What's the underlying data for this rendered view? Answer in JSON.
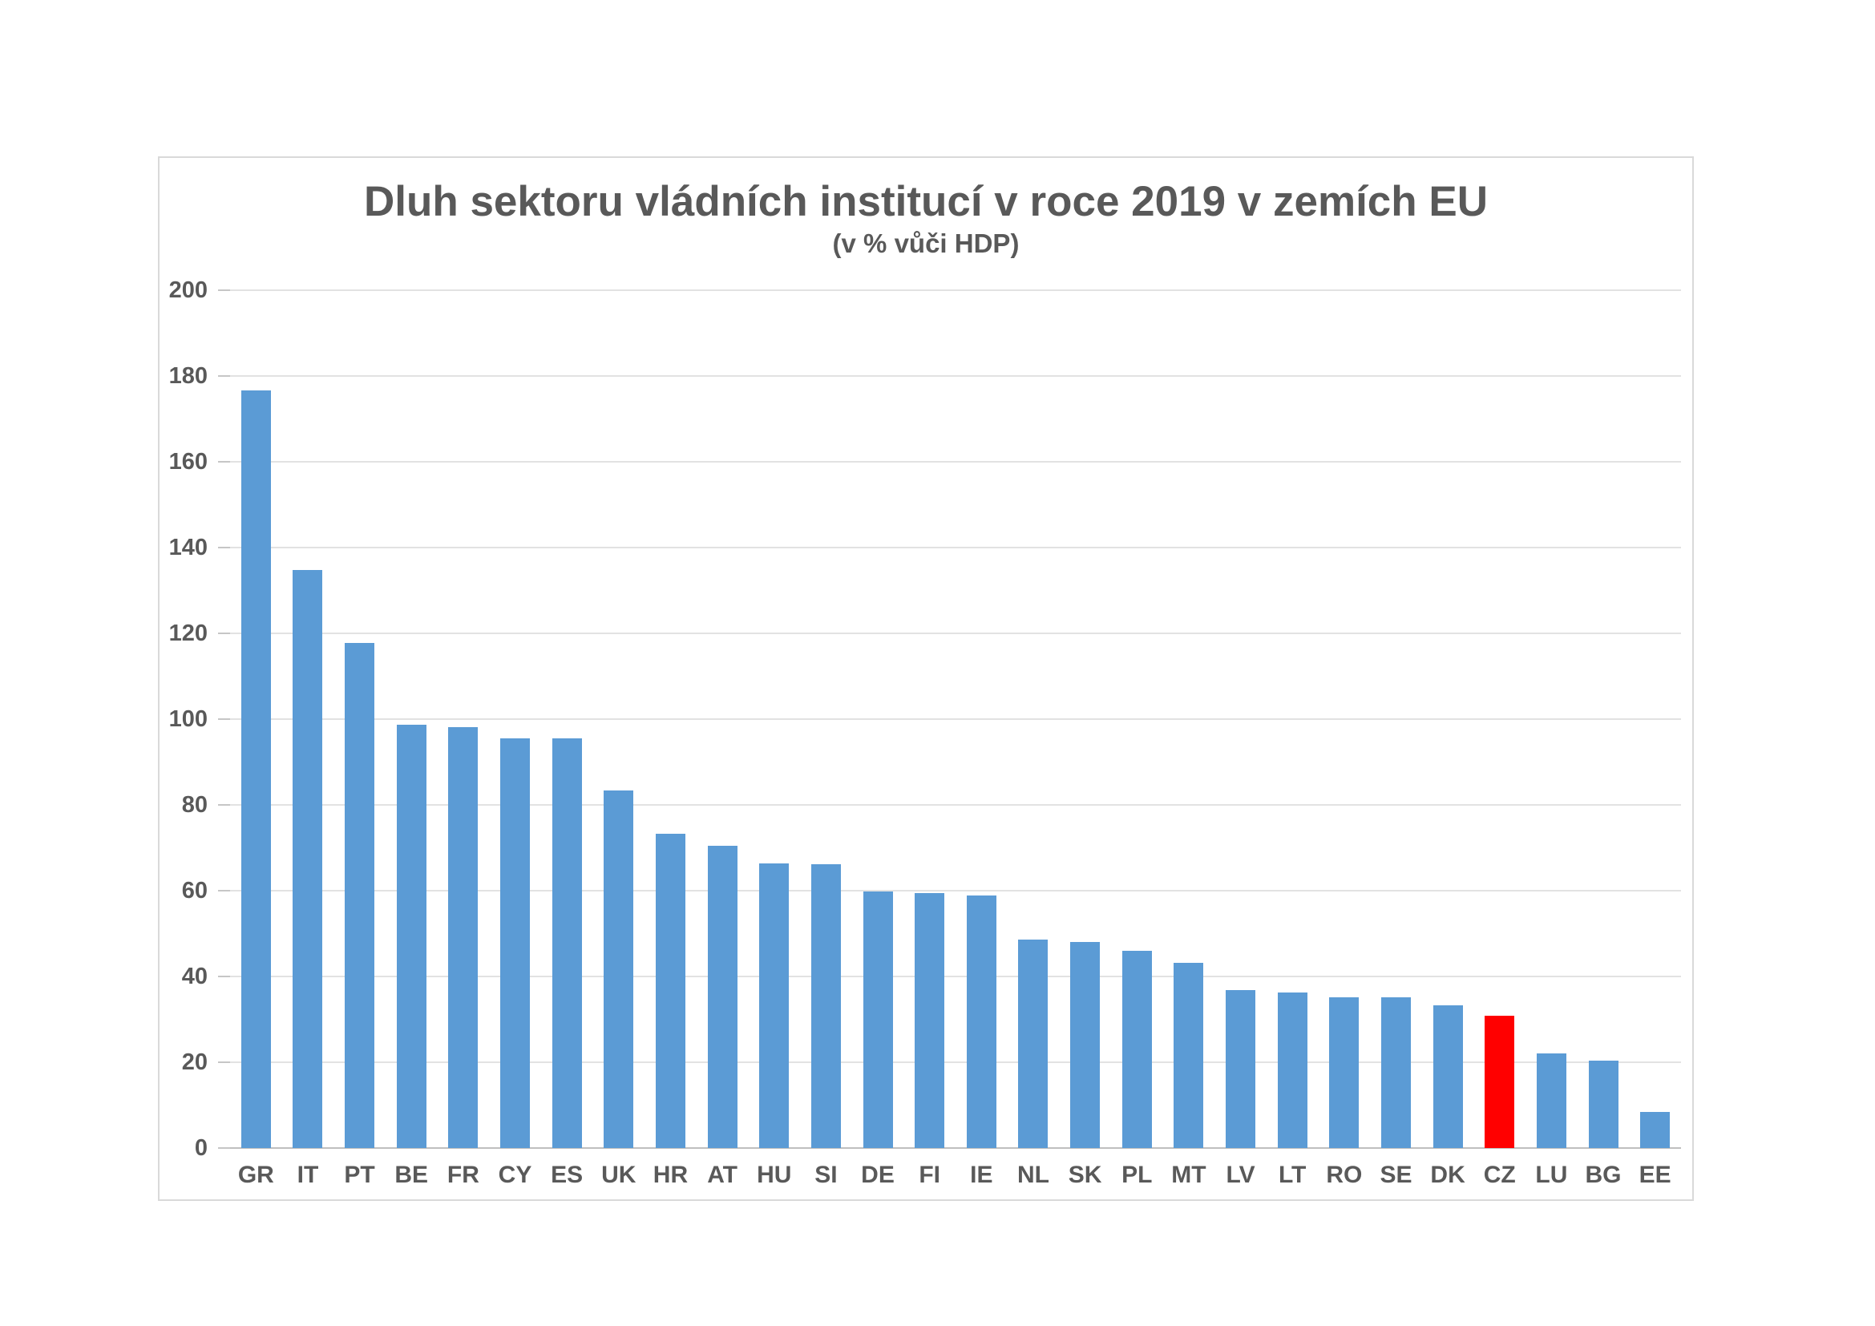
{
  "chart_data": {
    "type": "bar",
    "title": "Dluh sektoru vládních institucí v roce 2019 v zemích EU",
    "subtitle": "(v % vůči HDP)",
    "categories": [
      "GR",
      "IT",
      "PT",
      "BE",
      "FR",
      "CY",
      "ES",
      "UK",
      "HR",
      "AT",
      "HU",
      "SI",
      "DE",
      "FI",
      "IE",
      "NL",
      "SK",
      "PL",
      "MT",
      "LV",
      "LT",
      "RO",
      "SE",
      "DK",
      "CZ",
      "LU",
      "BG",
      "EE"
    ],
    "values": [
      176.6,
      134.8,
      117.7,
      98.6,
      98.1,
      95.5,
      95.5,
      83.3,
      73.2,
      70.4,
      66.3,
      66.1,
      59.8,
      59.4,
      58.8,
      48.6,
      48.0,
      46.0,
      43.1,
      36.9,
      36.3,
      35.2,
      35.1,
      33.2,
      30.8,
      22.1,
      20.4,
      8.4
    ],
    "highlighted_category": "CZ",
    "ylim": [
      0,
      200
    ],
    "ytick_step": 20,
    "ytick_labels": [
      "0",
      "20",
      "40",
      "60",
      "80",
      "100",
      "120",
      "140",
      "160",
      "180",
      "200"
    ],
    "grid": true,
    "legend": "none",
    "colors": {
      "bar": "#5B9BD5",
      "highlight": "#FF0000",
      "gridline": "#E2E2E2",
      "axis_line": "#BFBFBF",
      "tick": "#C6C6C6",
      "text": "#595959",
      "frame_border": "#D9D9D9"
    }
  }
}
